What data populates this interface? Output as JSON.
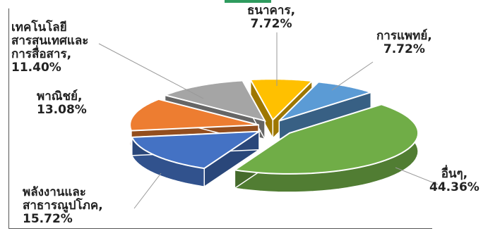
{
  "chart_data": {
    "type": "pie",
    "style": "3d-exploded",
    "title": "",
    "legend": "none",
    "data_labels": "category name and percentage",
    "slices": [
      {
        "name": "ธนาคาร",
        "value": 7.72,
        "label": "7.72%",
        "color": "#FFC000"
      },
      {
        "name": "การแพทย์",
        "value": 7.72,
        "label": "7.72%",
        "color": "#5B9BD5"
      },
      {
        "name": "อื่นๆ",
        "value": 44.36,
        "label": "44.36%",
        "color": "#70AD47"
      },
      {
        "name": "พลังงานและสาธารณูปโภค",
        "value": 15.72,
        "label": "15.72%",
        "color": "#4472C4"
      },
      {
        "name": "พาณิชย์",
        "value": 13.08,
        "label": "13.08%",
        "color": "#ED7D31"
      },
      {
        "name": "เทคโนโลยีสารสนเทศและการสื่อสาร",
        "value": 11.4,
        "label": "11.40%",
        "color": "#A5A5A5"
      }
    ]
  },
  "labels": {
    "bank": {
      "line1": "ธนาคาร,",
      "line2": "7.72%"
    },
    "medical": {
      "line1": "การแพทย์,",
      "line2": "7.72%"
    },
    "others": {
      "line1": "อื่นๆ,",
      "line2": "44.36%"
    },
    "energy": {
      "line1": "พลังงานและ",
      "line2": "สาธารณูปโภค,",
      "line3": "15.72%"
    },
    "commerce": {
      "line1": "พาณิชย์,",
      "line2": "13.08%"
    },
    "ict": {
      "line1": "เทคโนโลยี",
      "line2": "สารสนเทศและ",
      "line3": "การสื่อสาร,",
      "line4": "11.40%"
    }
  }
}
